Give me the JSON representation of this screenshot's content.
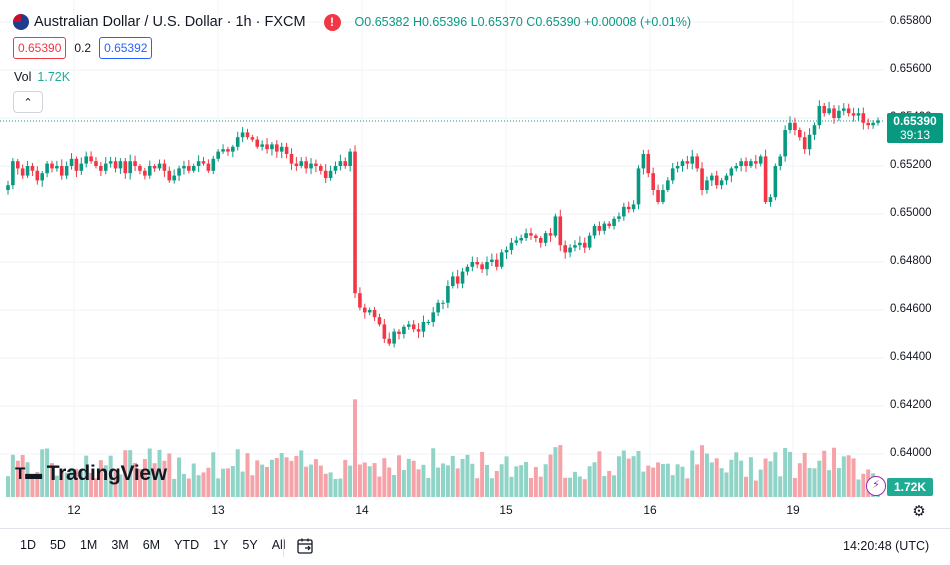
{
  "header": {
    "symbol": "Australian Dollar / U.S. Dollar · 1h · FXCM",
    "open_label": "O",
    "open": "0.65382",
    "high_label": "H",
    "high": "0.65396",
    "low_label": "L",
    "low": "0.65370",
    "close_label": "C",
    "close": "0.65390",
    "change": "+0.00008 (+0.01%)",
    "alert_glyph": "!",
    "flag_icon": "au-flag-icon"
  },
  "quote": {
    "bid": "0.65390",
    "spread": "0.2",
    "ask": "0.65392"
  },
  "volume": {
    "label": "Vol",
    "value": "1.72K",
    "tag": "1.72K"
  },
  "price_tag": {
    "price": "0.65390",
    "countdown": "39:13"
  },
  "logo": {
    "text": "TradingView",
    "mark": "17"
  },
  "timeframes": [
    "1D",
    "5D",
    "1M",
    "3M",
    "6M",
    "YTD",
    "1Y",
    "5Y",
    "All"
  ],
  "clock": "14:20:48 (UTC)",
  "colors": {
    "up": "#089981",
    "down": "#f23645",
    "vol_up": "#8fd4c6",
    "vol_down": "#f5a3a8"
  },
  "chart_data": {
    "type": "candlestick",
    "y_ticks": [
      "0.65800",
      "0.65600",
      "0.65400",
      "0.65200",
      "0.65000",
      "0.64800",
      "0.64600",
      "0.64400",
      "0.64200",
      "0.64000"
    ],
    "ylim": [
      0.6398,
      0.6582
    ],
    "x_ticks": [
      "12",
      "13",
      "14",
      "15",
      "16",
      "19"
    ],
    "last_price": 0.6539,
    "candles_close": [
      0.6512,
      0.6522,
      0.6519,
      0.6516,
      0.652,
      0.6518,
      0.6514,
      0.6517,
      0.6521,
      0.6519,
      0.652,
      0.6516,
      0.652,
      0.6523,
      0.6518,
      0.6521,
      0.6524,
      0.6522,
      0.652,
      0.6518,
      0.6521,
      0.6522,
      0.6519,
      0.6522,
      0.6517,
      0.6522,
      0.652,
      0.6518,
      0.6516,
      0.652,
      0.6519,
      0.6521,
      0.6518,
      0.6514,
      0.6516,
      0.6519,
      0.652,
      0.6518,
      0.652,
      0.6522,
      0.6521,
      0.6518,
      0.6523,
      0.6526,
      0.6527,
      0.6526,
      0.6528,
      0.6532,
      0.6534,
      0.6532,
      0.6531,
      0.6528,
      0.6529,
      0.6527,
      0.6529,
      0.6526,
      0.6528,
      0.6525,
      0.6521,
      0.652,
      0.6522,
      0.6519,
      0.6521,
      0.652,
      0.6518,
      0.6515,
      0.6518,
      0.652,
      0.6522,
      0.652,
      0.6526,
      0.6467,
      0.6461,
      0.6459,
      0.646,
      0.6457,
      0.6454,
      0.6448,
      0.6446,
      0.6451,
      0.645,
      0.6453,
      0.6454,
      0.6452,
      0.6451,
      0.6455,
      0.6455,
      0.6459,
      0.6463,
      0.6463,
      0.647,
      0.6474,
      0.6471,
      0.6476,
      0.6478,
      0.648,
      0.6479,
      0.6477,
      0.648,
      0.6481,
      0.6478,
      0.6484,
      0.6485,
      0.6488,
      0.6489,
      0.649,
      0.6492,
      0.6491,
      0.649,
      0.6488,
      0.6492,
      0.6491,
      0.6499,
      0.6487,
      0.6484,
      0.6486,
      0.6487,
      0.6488,
      0.6486,
      0.6491,
      0.6495,
      0.6493,
      0.6496,
      0.6495,
      0.6498,
      0.6499,
      0.6503,
      0.6502,
      0.6504,
      0.6519,
      0.6525,
      0.6517,
      0.651,
      0.6505,
      0.651,
      0.6514,
      0.6519,
      0.652,
      0.6522,
      0.6521,
      0.6524,
      0.6519,
      0.651,
      0.6514,
      0.6516,
      0.6512,
      0.6514,
      0.6516,
      0.6519,
      0.652,
      0.6522,
      0.652,
      0.6522,
      0.6521,
      0.6524,
      0.6505,
      0.6507,
      0.652,
      0.6524,
      0.6535,
      0.6538,
      0.6535,
      0.6532,
      0.6527,
      0.6533,
      0.6537,
      0.6545,
      0.6542,
      0.6544,
      0.654,
      0.6543,
      0.6544,
      0.6542,
      0.6541,
      0.6542,
      0.6538,
      0.6537,
      0.6538,
      0.6539
    ]
  }
}
